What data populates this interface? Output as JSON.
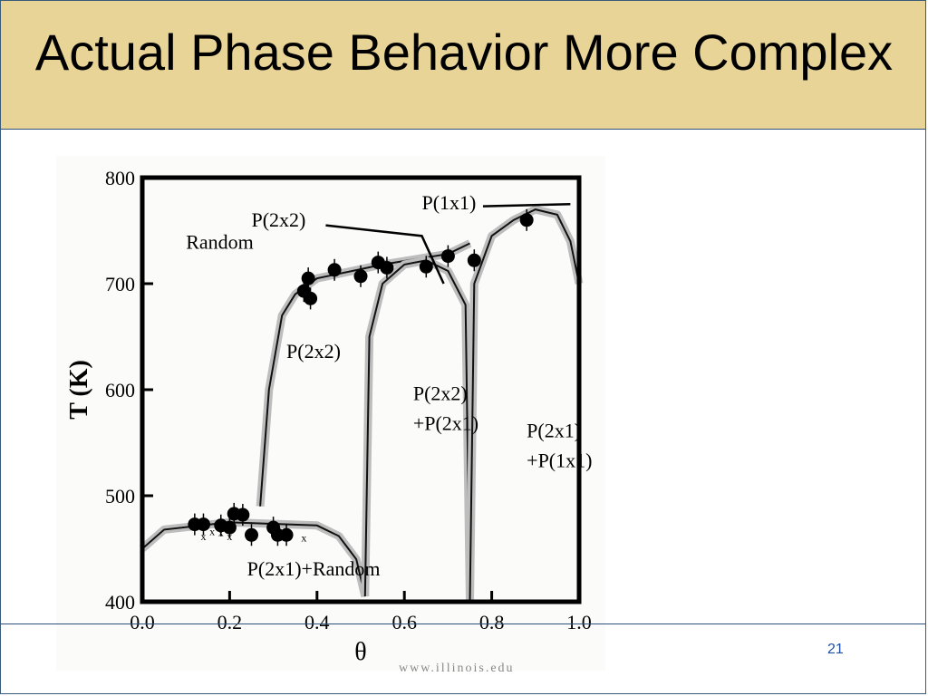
{
  "slide": {
    "title": "Actual Phase Behavior More Complex",
    "footer_url": "www.illinois.edu",
    "page_number": "21"
  },
  "chart_data": {
    "type": "scatter",
    "title": "",
    "xlabel": "θ",
    "ylabel": "T (K)",
    "xlim": [
      0.0,
      1.0
    ],
    "ylim": [
      400,
      800
    ],
    "x_ticks": [
      "0.0",
      "0.2",
      "0.4",
      "0.6",
      "0.8",
      "1.0"
    ],
    "y_ticks": [
      "400",
      "500",
      "600",
      "700",
      "800"
    ],
    "grid": false,
    "series": [
      {
        "marker": "filled-circle",
        "points": [
          {
            "x": 0.12,
            "y": 473
          },
          {
            "x": 0.14,
            "y": 473
          },
          {
            "x": 0.18,
            "y": 472
          },
          {
            "x": 0.2,
            "y": 470
          },
          {
            "x": 0.21,
            "y": 483
          },
          {
            "x": 0.23,
            "y": 482
          },
          {
            "x": 0.25,
            "y": 463
          },
          {
            "x": 0.3,
            "y": 470
          },
          {
            "x": 0.31,
            "y": 463
          },
          {
            "x": 0.33,
            "y": 463
          },
          {
            "x": 0.37,
            "y": 693
          },
          {
            "x": 0.38,
            "y": 705
          },
          {
            "x": 0.385,
            "y": 686
          },
          {
            "x": 0.44,
            "y": 713
          },
          {
            "x": 0.5,
            "y": 707
          },
          {
            "x": 0.54,
            "y": 720
          },
          {
            "x": 0.56,
            "y": 715
          },
          {
            "x": 0.65,
            "y": 716
          },
          {
            "x": 0.7,
            "y": 726
          },
          {
            "x": 0.76,
            "y": 722
          },
          {
            "x": 0.88,
            "y": 760
          }
        ]
      },
      {
        "marker": "x",
        "points": [
          {
            "x": 0.14,
            "y": 458
          },
          {
            "x": 0.16,
            "y": 463
          },
          {
            "x": 0.18,
            "y": 462
          },
          {
            "x": 0.2,
            "y": 458
          },
          {
            "x": 0.37,
            "y": 457
          }
        ]
      }
    ],
    "annotations": [
      {
        "text": "Random",
        "x": 0.1,
        "y": 733
      },
      {
        "text": "P(2x2)",
        "x": 0.25,
        "y": 754
      },
      {
        "text": "P(1x1)",
        "x": 0.64,
        "y": 770
      },
      {
        "text": "P(2x2)",
        "x": 0.33,
        "y": 630
      },
      {
        "text": "P(2x2)",
        "x": 0.62,
        "y": 590
      },
      {
        "text": "+P(2x1)",
        "x": 0.62,
        "y": 562
      },
      {
        "text": "P(2x1)",
        "x": 0.88,
        "y": 555
      },
      {
        "text": "+P(1x1)",
        "x": 0.88,
        "y": 527
      },
      {
        "text": "P(2x1)+Random",
        "x": 0.24,
        "y": 425
      }
    ],
    "boundaries": [
      {
        "name": "random-to-p2x1",
        "x": [
          0.0,
          0.05,
          0.2,
          0.4,
          0.45,
          0.49,
          0.51
        ],
        "y": [
          450,
          468,
          475,
          472,
          462,
          440,
          405
        ]
      },
      {
        "name": "random-to-p2x2",
        "x": [
          0.27,
          0.29,
          0.32,
          0.35,
          0.4,
          0.55,
          0.7,
          0.75
        ],
        "y": [
          490,
          600,
          670,
          690,
          705,
          718,
          728,
          738
        ]
      },
      {
        "name": "p2x2-dome",
        "x": [
          0.51,
          0.52,
          0.55,
          0.6,
          0.65,
          0.7,
          0.74,
          0.75
        ],
        "y": [
          405,
          650,
          700,
          718,
          722,
          712,
          680,
          400
        ]
      },
      {
        "name": "p2x1-dome",
        "x": [
          0.75,
          0.76,
          0.8,
          0.85,
          0.9,
          0.95,
          0.98,
          1.0
        ],
        "y": [
          400,
          700,
          745,
          760,
          770,
          765,
          740,
          700
        ]
      }
    ]
  }
}
